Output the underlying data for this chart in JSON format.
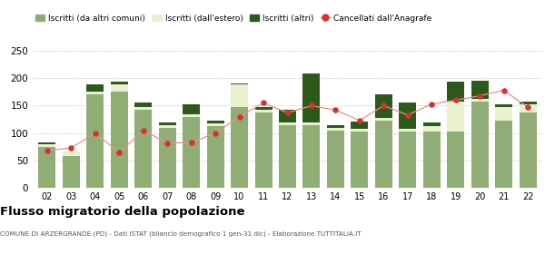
{
  "years": [
    "02",
    "03",
    "04",
    "05",
    "06",
    "07",
    "08",
    "09",
    "10",
    "11",
    "12",
    "13",
    "14",
    "15",
    "16",
    "17",
    "18",
    "19",
    "20",
    "21",
    "22"
  ],
  "iscritti_altri_comuni": [
    75,
    58,
    170,
    175,
    143,
    110,
    130,
    113,
    148,
    138,
    115,
    115,
    104,
    103,
    122,
    103,
    103,
    103,
    158,
    122,
    138
  ],
  "iscritti_estero": [
    5,
    8,
    5,
    13,
    5,
    5,
    5,
    5,
    40,
    5,
    5,
    5,
    5,
    5,
    5,
    5,
    10,
    55,
    5,
    25,
    14
  ],
  "iscritti_altri": [
    3,
    0,
    13,
    5,
    8,
    5,
    18,
    5,
    2,
    5,
    23,
    88,
    5,
    13,
    43,
    48,
    7,
    35,
    32,
    5,
    6
  ],
  "cancellati": [
    68,
    73,
    100,
    65,
    105,
    82,
    83,
    100,
    130,
    155,
    137,
    150,
    142,
    123,
    150,
    133,
    153,
    160,
    168,
    178,
    147
  ],
  "color_altri_comuni": "#8fad75",
  "color_estero": "#e8f0d0",
  "color_altri": "#2d5a1b",
  "color_cancellati": "#d93030",
  "color_cancellati_line": "#e89090",
  "ylim": [
    0,
    250
  ],
  "yticks": [
    0,
    50,
    100,
    150,
    200,
    250
  ],
  "title": "Flusso migratorio della popolazione",
  "subtitle": "COMUNE DI ARZERGRANDE (PD) - Dati ISTAT (bilancio demografico 1 gen-31 dic) - Elaborazione TUTTITALIA.IT",
  "legend_labels": [
    "Iscritti (da altri comuni)",
    "Iscritti (dall'estero)",
    "Iscritti (altri)",
    "Cancellati dall'Anagrafe"
  ],
  "background_color": "#ffffff",
  "grid_color": "#cccccc"
}
